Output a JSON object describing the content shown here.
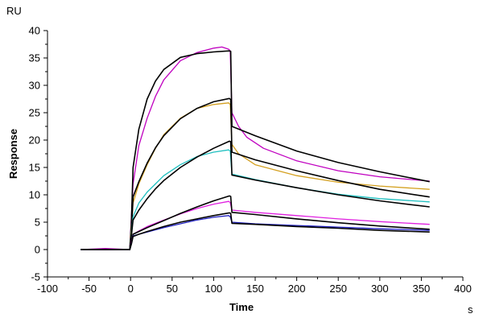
{
  "chart_data": {
    "type": "line",
    "title": "",
    "xlabel": "Time",
    "ylabel": "Response",
    "x_unit": "s",
    "y_unit": "RU",
    "xlim": [
      -100,
      400
    ],
    "ylim": [
      -5,
      40
    ],
    "x_ticks": [
      -100,
      -50,
      0,
      50,
      100,
      150,
      200,
      250,
      300,
      350,
      400
    ],
    "y_ticks": [
      -5,
      0,
      5,
      10,
      15,
      20,
      25,
      30,
      35,
      40
    ],
    "x_tick_labels": [
      "-100",
      "-50",
      "0",
      "50",
      "100",
      "150",
      "200",
      "250",
      "300",
      "350",
      "400"
    ],
    "y_tick_labels": [
      "-5",
      "0",
      "5",
      "10",
      "15",
      "20",
      "25",
      "30",
      "35",
      "40"
    ],
    "grid": false,
    "legend": "none",
    "series": [
      {
        "color": "#c000c0",
        "x": [
          -60,
          -30,
          -1,
          1,
          3,
          10,
          20,
          30,
          40,
          60,
          80,
          100,
          110,
          118,
          120,
          122,
          130,
          140,
          160,
          200,
          250,
          300,
          360
        ],
        "y": [
          0,
          0.2,
          0,
          6,
          12,
          19,
          24,
          28,
          31,
          34.5,
          36,
          36.8,
          37,
          36.6,
          36.3,
          25,
          22.5,
          20.5,
          18.5,
          16.2,
          14.4,
          13.3,
          12.5
        ]
      },
      {
        "color": "#000000",
        "x": [
          -60,
          -1,
          1,
          3,
          10,
          20,
          30,
          40,
          60,
          80,
          100,
          119,
          120.5,
          122,
          150,
          200,
          250,
          300,
          360
        ],
        "y": [
          0,
          0,
          5,
          15,
          22,
          27.5,
          30.8,
          32.9,
          35.1,
          35.8,
          36.1,
          36.3,
          36.2,
          22.5,
          20.8,
          18.0,
          15.9,
          14.2,
          12.4
        ]
      },
      {
        "color": "#d4a020",
        "x": [
          -60,
          -1,
          1,
          3,
          10,
          20,
          30,
          40,
          60,
          80,
          100,
          118,
          120,
          122,
          130,
          150,
          200,
          250,
          300,
          360
        ],
        "y": [
          0,
          0,
          4,
          8.5,
          12,
          15.5,
          18.5,
          21,
          24,
          25.8,
          26.5,
          26.8,
          26.5,
          19.2,
          17.5,
          15.5,
          13.5,
          12.3,
          11.6,
          11.0
        ]
      },
      {
        "color": "#000000",
        "x": [
          -60,
          -1,
          1,
          3,
          10,
          20,
          30,
          40,
          60,
          80,
          100,
          119,
          120.5,
          122,
          150,
          200,
          250,
          300,
          360
        ],
        "y": [
          0,
          0,
          3,
          9.6,
          12.4,
          15.8,
          18.6,
          20.8,
          23.9,
          25.8,
          27.0,
          27.6,
          27.4,
          17.8,
          16.4,
          14.4,
          12.6,
          11.0,
          9.6
        ]
      },
      {
        "color": "#20c0c0",
        "x": [
          -60,
          -1,
          1,
          3,
          10,
          20,
          30,
          40,
          60,
          80,
          100,
          118,
          120,
          122,
          150,
          200,
          250,
          300,
          360
        ],
        "y": [
          0,
          0,
          3,
          6,
          8.5,
          10.5,
          12,
          13.5,
          15.5,
          17,
          17.8,
          18.2,
          18,
          13.8,
          12.8,
          11.3,
          10.1,
          9.3,
          8.7
        ]
      },
      {
        "color": "#000000",
        "x": [
          -60,
          -1,
          1,
          3,
          10,
          20,
          30,
          40,
          60,
          80,
          100,
          119,
          120.5,
          122,
          150,
          200,
          250,
          300,
          360
        ],
        "y": [
          0,
          0,
          2.5,
          5.4,
          7.2,
          9.3,
          11.1,
          12.6,
          15.0,
          16.9,
          18.5,
          19.8,
          19.7,
          13.6,
          12.7,
          11.3,
          10.0,
          8.9,
          7.8
        ]
      },
      {
        "color": "#e020e0",
        "x": [
          -60,
          -1,
          1,
          3,
          10,
          20,
          40,
          60,
          80,
          100,
          118,
          120,
          122,
          150,
          200,
          250,
          300,
          360
        ],
        "y": [
          0,
          0,
          1.5,
          2.8,
          3.4,
          4.2,
          5.4,
          6.5,
          7.5,
          8.3,
          8.8,
          8.6,
          7.2,
          6.8,
          6.2,
          5.6,
          5.1,
          4.6
        ]
      },
      {
        "color": "#000000",
        "x": [
          -60,
          -1,
          1,
          3,
          10,
          20,
          40,
          60,
          80,
          100,
          119,
          120.5,
          122,
          150,
          200,
          250,
          300,
          360
        ],
        "y": [
          0,
          0,
          1.2,
          2.8,
          3.3,
          4.0,
          5.3,
          6.6,
          7.8,
          8.9,
          9.8,
          9.7,
          6.8,
          6.4,
          5.6,
          4.9,
          4.3,
          3.7
        ]
      },
      {
        "color": "#2020c0",
        "x": [
          -60,
          -1,
          1,
          3,
          10,
          20,
          40,
          60,
          80,
          100,
          118,
          120,
          122,
          150,
          200,
          250,
          300,
          360
        ],
        "y": [
          0,
          0,
          1,
          2.5,
          2.8,
          3.2,
          4,
          4.7,
          5.4,
          5.9,
          6.2,
          6,
          5,
          4.7,
          4.4,
          4.1,
          3.8,
          3.5
        ]
      },
      {
        "color": "#000000",
        "x": [
          -60,
          -1,
          1,
          3,
          10,
          20,
          40,
          60,
          80,
          100,
          119,
          120.5,
          122,
          150,
          200,
          250,
          300,
          360
        ],
        "y": [
          0,
          0,
          1,
          2.4,
          2.8,
          3.3,
          4.2,
          5.0,
          5.6,
          6.2,
          6.7,
          6.6,
          4.8,
          4.6,
          4.2,
          3.9,
          3.5,
          3.2
        ]
      }
    ]
  }
}
